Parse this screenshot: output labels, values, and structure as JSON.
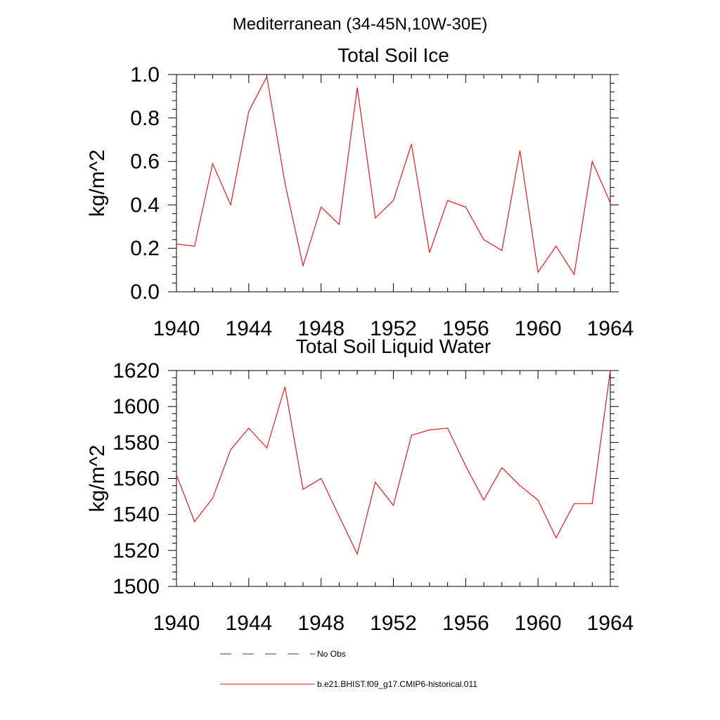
{
  "figure_title": "Mediterranean (34-45N,10W-30E)",
  "legend": [
    {
      "label": "No Obs",
      "color": "#3a3a8c",
      "style": "dashed"
    },
    {
      "label": "b.e21.BHIST.f09_g17.CMIP6-historical.011",
      "color": "#e41a1c",
      "style": "solid"
    }
  ],
  "chart_data": [
    {
      "type": "line",
      "title": "Total Soil Ice",
      "xlabel": "",
      "ylabel": "kg/m^2",
      "xlim": [
        1940,
        1964
      ],
      "ylim": [
        0.0,
        1.0
      ],
      "x_ticks": [
        1940,
        1944,
        1948,
        1952,
        1956,
        1960,
        1964
      ],
      "y_ticks": [
        "0.0",
        "0.2",
        "0.4",
        "0.6",
        "0.8",
        "1.0"
      ],
      "y_tick_values": [
        0.0,
        0.2,
        0.4,
        0.6,
        0.8,
        1.0
      ],
      "grid": false,
      "series": [
        {
          "name": "b.e21.BHIST.f09_g17.CMIP6-historical.011",
          "color": "#e41a1c",
          "x": [
            1940,
            1941,
            1942,
            1943,
            1944,
            1945,
            1946,
            1947,
            1948,
            1949,
            1950,
            1951,
            1952,
            1953,
            1954,
            1955,
            1956,
            1957,
            1958,
            1959,
            1960,
            1961,
            1962,
            1963,
            1964
          ],
          "y": [
            0.22,
            0.21,
            0.59,
            0.4,
            0.83,
            0.99,
            0.5,
            0.12,
            0.39,
            0.31,
            0.94,
            0.34,
            0.42,
            0.68,
            0.18,
            0.42,
            0.39,
            0.24,
            0.19,
            0.65,
            0.09,
            0.21,
            0.08,
            0.6,
            0.41
          ]
        }
      ]
    },
    {
      "type": "line",
      "title": "Total Soil Liquid Water",
      "xlabel": "",
      "ylabel": "kg/m^2",
      "xlim": [
        1940,
        1964
      ],
      "ylim": [
        1500,
        1620
      ],
      "x_ticks": [
        1940,
        1944,
        1948,
        1952,
        1956,
        1960,
        1964
      ],
      "y_ticks": [
        "1500",
        "1520",
        "1540",
        "1560",
        "1580",
        "1600",
        "1620"
      ],
      "y_tick_values": [
        1500,
        1520,
        1540,
        1560,
        1580,
        1600,
        1620
      ],
      "grid": false,
      "series": [
        {
          "name": "b.e21.BHIST.f09_g17.CMIP6-historical.011",
          "color": "#e41a1c",
          "x": [
            1940,
            1941,
            1942,
            1943,
            1944,
            1945,
            1946,
            1947,
            1948,
            1949,
            1950,
            1951,
            1952,
            1953,
            1954,
            1955,
            1956,
            1957,
            1958,
            1959,
            1960,
            1961,
            1962,
            1963,
            1964
          ],
          "y": [
            1562,
            1536,
            1549,
            1576,
            1588,
            1577,
            1611,
            1554,
            1560,
            1539,
            1518,
            1558,
            1545,
            1584,
            1587,
            1588,
            1567,
            1548,
            1566,
            1556,
            1548,
            1527,
            1546,
            1546,
            1620
          ]
        }
      ]
    }
  ]
}
